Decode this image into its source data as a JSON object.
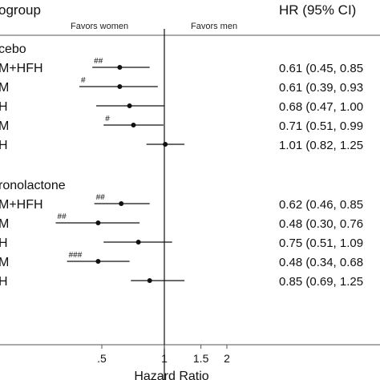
{
  "header": {
    "subgroup": "ogroup",
    "hr_ci": "HR (95% CI)",
    "favors_left": "Favors women",
    "favors_right": "Favors men"
  },
  "chart_data": {
    "type": "forest",
    "xlabel": "Hazard Ratio",
    "xscale": "log",
    "xlim": [
      0.3,
      2.6
    ],
    "xticks": [
      {
        "value": 0.5,
        "label": ".5"
      },
      {
        "value": 1,
        "label": "1"
      },
      {
        "value": 1.5,
        "label": "1.5"
      },
      {
        "value": 2,
        "label": "2"
      }
    ],
    "reference_line": 1,
    "groups": [
      {
        "name": "cebo",
        "rows": [
          {
            "label": "M+HFH",
            "hr": 0.61,
            "lo": 0.45,
            "hi": 0.85,
            "ci_text": "0.61 (0.45, 0.85",
            "mark": "##"
          },
          {
            "label": "M",
            "hr": 0.61,
            "lo": 0.39,
            "hi": 0.93,
            "ci_text": "0.61 (0.39, 0.93",
            "mark": "#"
          },
          {
            "label": "H",
            "hr": 0.68,
            "lo": 0.47,
            "hi": 1.0,
            "ci_text": "0.68 (0.47, 1.00",
            "mark": ""
          },
          {
            "label": "M",
            "hr": 0.71,
            "lo": 0.51,
            "hi": 0.99,
            "ci_text": "0.71 (0.51, 0.99",
            "mark": "#"
          },
          {
            "label": "H",
            "hr": 1.01,
            "lo": 0.82,
            "hi": 1.25,
            "ci_text": "1.01 (0.82, 1.25",
            "mark": ""
          }
        ]
      },
      {
        "name": "ronolactone",
        "rows": [
          {
            "label": "M+HFH",
            "hr": 0.62,
            "lo": 0.46,
            "hi": 0.85,
            "ci_text": "0.62 (0.46, 0.85",
            "mark": "##"
          },
          {
            "label": "M",
            "hr": 0.48,
            "lo": 0.3,
            "hi": 0.76,
            "ci_text": "0.48 (0.30, 0.76",
            "mark": "##"
          },
          {
            "label": "H",
            "hr": 0.75,
            "lo": 0.51,
            "hi": 1.09,
            "ci_text": "0.75 (0.51, 1.09",
            "mark": ""
          },
          {
            "label": "M",
            "hr": 0.48,
            "lo": 0.34,
            "hi": 0.68,
            "ci_text": "0.48 (0.34, 0.68",
            "mark": "###"
          },
          {
            "label": "H",
            "hr": 0.85,
            "lo": 0.69,
            "hi": 1.25,
            "ci_text": "0.85 (0.69, 1.25",
            "mark": ""
          }
        ]
      }
    ]
  }
}
